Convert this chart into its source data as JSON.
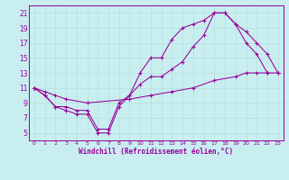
{
  "xlabel": "Windchill (Refroidissement éolien,°C)",
  "background_color": "#c8eef0",
  "line_color": "#990099",
  "grid_color": "#b8dede",
  "xlim": [
    -0.5,
    23.5
  ],
  "ylim": [
    4,
    22
  ],
  "xticks": [
    0,
    1,
    2,
    3,
    4,
    5,
    6,
    7,
    8,
    9,
    10,
    11,
    12,
    13,
    14,
    15,
    16,
    17,
    18,
    19,
    20,
    21,
    22,
    23
  ],
  "yticks": [
    5,
    7,
    9,
    11,
    13,
    15,
    17,
    19,
    21
  ],
  "curve1_x": [
    0,
    1,
    2,
    3,
    4,
    5,
    6,
    7,
    8,
    9,
    10,
    11,
    12,
    13,
    14,
    15,
    16,
    17,
    18,
    19,
    20,
    21,
    22
  ],
  "curve1_y": [
    11,
    10,
    8.5,
    8,
    7.5,
    7.5,
    5,
    5,
    8.5,
    10,
    13,
    15,
    15,
    17.5,
    19,
    19.5,
    20,
    21,
    21,
    19.5,
    17,
    15.5,
    13
  ],
  "curve2_x": [
    0,
    1,
    2,
    3,
    4,
    5,
    6,
    7,
    8,
    9,
    10,
    11,
    12,
    13,
    14,
    15,
    16,
    17,
    18,
    19,
    20,
    21,
    22,
    23
  ],
  "curve2_y": [
    11,
    10,
    8.5,
    8.5,
    8,
    8,
    5.5,
    5.5,
    9,
    10,
    11.5,
    12.5,
    12.5,
    13.5,
    14.5,
    16.5,
    18,
    21,
    21,
    19.5,
    18.5,
    17,
    15.5,
    13
  ],
  "curve3_x": [
    0,
    1,
    2,
    3,
    5,
    9,
    11,
    13,
    15,
    17,
    19,
    20,
    21,
    22,
    23
  ],
  "curve3_y": [
    11,
    10.5,
    10,
    9.5,
    9,
    9.5,
    10,
    10.5,
    11,
    12,
    12.5,
    13,
    13,
    13,
    13
  ],
  "xlabel_fontsize": 5.5,
  "tick_fontsize_x": 4.5,
  "tick_fontsize_y": 5.5
}
